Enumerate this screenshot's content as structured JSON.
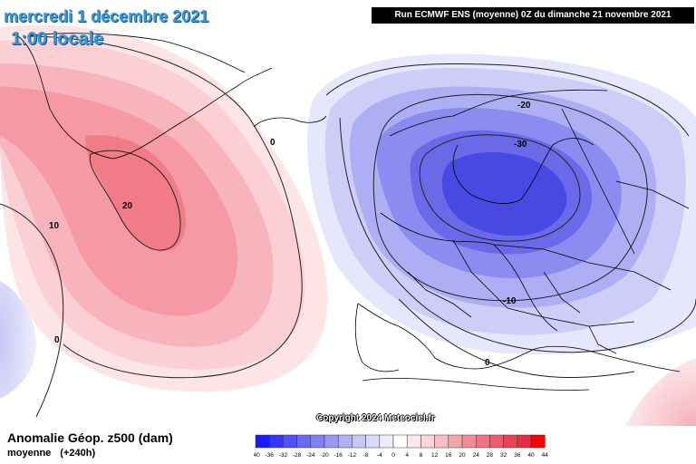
{
  "header": {
    "date": "mercredi 1 décembre 2021",
    "time": "1:00 locale",
    "run": "Run ECMWF ENS (moyenne) 0Z du dimanche 21 novembre 2021"
  },
  "map": {
    "contour_labels": [
      {
        "id": "g0",
        "text": "0"
      },
      {
        "id": "g20",
        "text": "20"
      },
      {
        "id": "w10",
        "text": "10"
      },
      {
        "id": "w0",
        "text": "0"
      },
      {
        "id": "s20",
        "text": "-20"
      },
      {
        "id": "s30",
        "text": "-30"
      },
      {
        "id": "s10",
        "text": "-10"
      },
      {
        "id": "e0",
        "text": "0"
      }
    ],
    "copyright": "Copyright 2024 Meteociel.fr"
  },
  "footer": {
    "variable": "Anomalie Géop. z500 (dam)",
    "mean": "moyenne",
    "lead": "(+240h)"
  },
  "legend": {
    "ticks": [
      "-40",
      "-36",
      "-32",
      "-28",
      "-24",
      "-20",
      "-16",
      "-12",
      "-8",
      "-4",
      "0",
      "4",
      "8",
      "12",
      "16",
      "20",
      "24",
      "28",
      "32",
      "36",
      "40",
      "44"
    ],
    "colors": [
      "#1a1aff",
      "#3636ff",
      "#5050ff",
      "#6a6af5",
      "#8080f0",
      "#9898f2",
      "#b0b0f5",
      "#c6c6f8",
      "#dadafb",
      "#ececfd",
      "#ffffff",
      "#fde8ec",
      "#fbd4da",
      "#f8bcc4",
      "#f5a4ae",
      "#f28c98",
      "#ef7482",
      "#ec5c6c",
      "#e94456",
      "#e62c40",
      "#ff0000"
    ]
  }
}
